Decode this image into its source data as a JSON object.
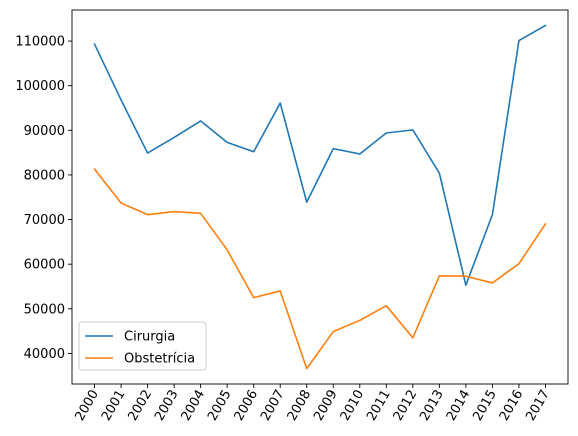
{
  "chart_data": {
    "type": "line",
    "x": [
      "2000",
      "2001",
      "2002",
      "2003",
      "2004",
      "2005",
      "2006",
      "2007",
      "2008",
      "2009",
      "2010",
      "2011",
      "2012",
      "2013",
      "2014",
      "2015",
      "2016",
      "2017"
    ],
    "series": [
      {
        "name": "Cirurgia",
        "color": "#1f77b4",
        "values": [
          109300,
          96800,
          84900,
          88400,
          92100,
          87300,
          85200,
          96100,
          73900,
          85900,
          84700,
          89400,
          90100,
          80400,
          55300,
          71100,
          110100,
          113500
        ]
      },
      {
        "name": "Obstetrícia",
        "color": "#ff7f0e",
        "values": [
          81300,
          73700,
          71100,
          71800,
          71400,
          63200,
          52500,
          54000,
          36600,
          44900,
          47400,
          50700,
          43500,
          57400,
          57300,
          55800,
          60100,
          69000
        ]
      }
    ],
    "ylim": [
      33150,
      116960
    ],
    "yticks": [
      40000,
      50000,
      60000,
      70000,
      80000,
      90000,
      100000,
      110000
    ],
    "ytick_labels": [
      "40000",
      "50000",
      "60000",
      "70000",
      "80000",
      "90000",
      "100000",
      "110000"
    ],
    "legend_position": "lower-left",
    "grid": false
  }
}
